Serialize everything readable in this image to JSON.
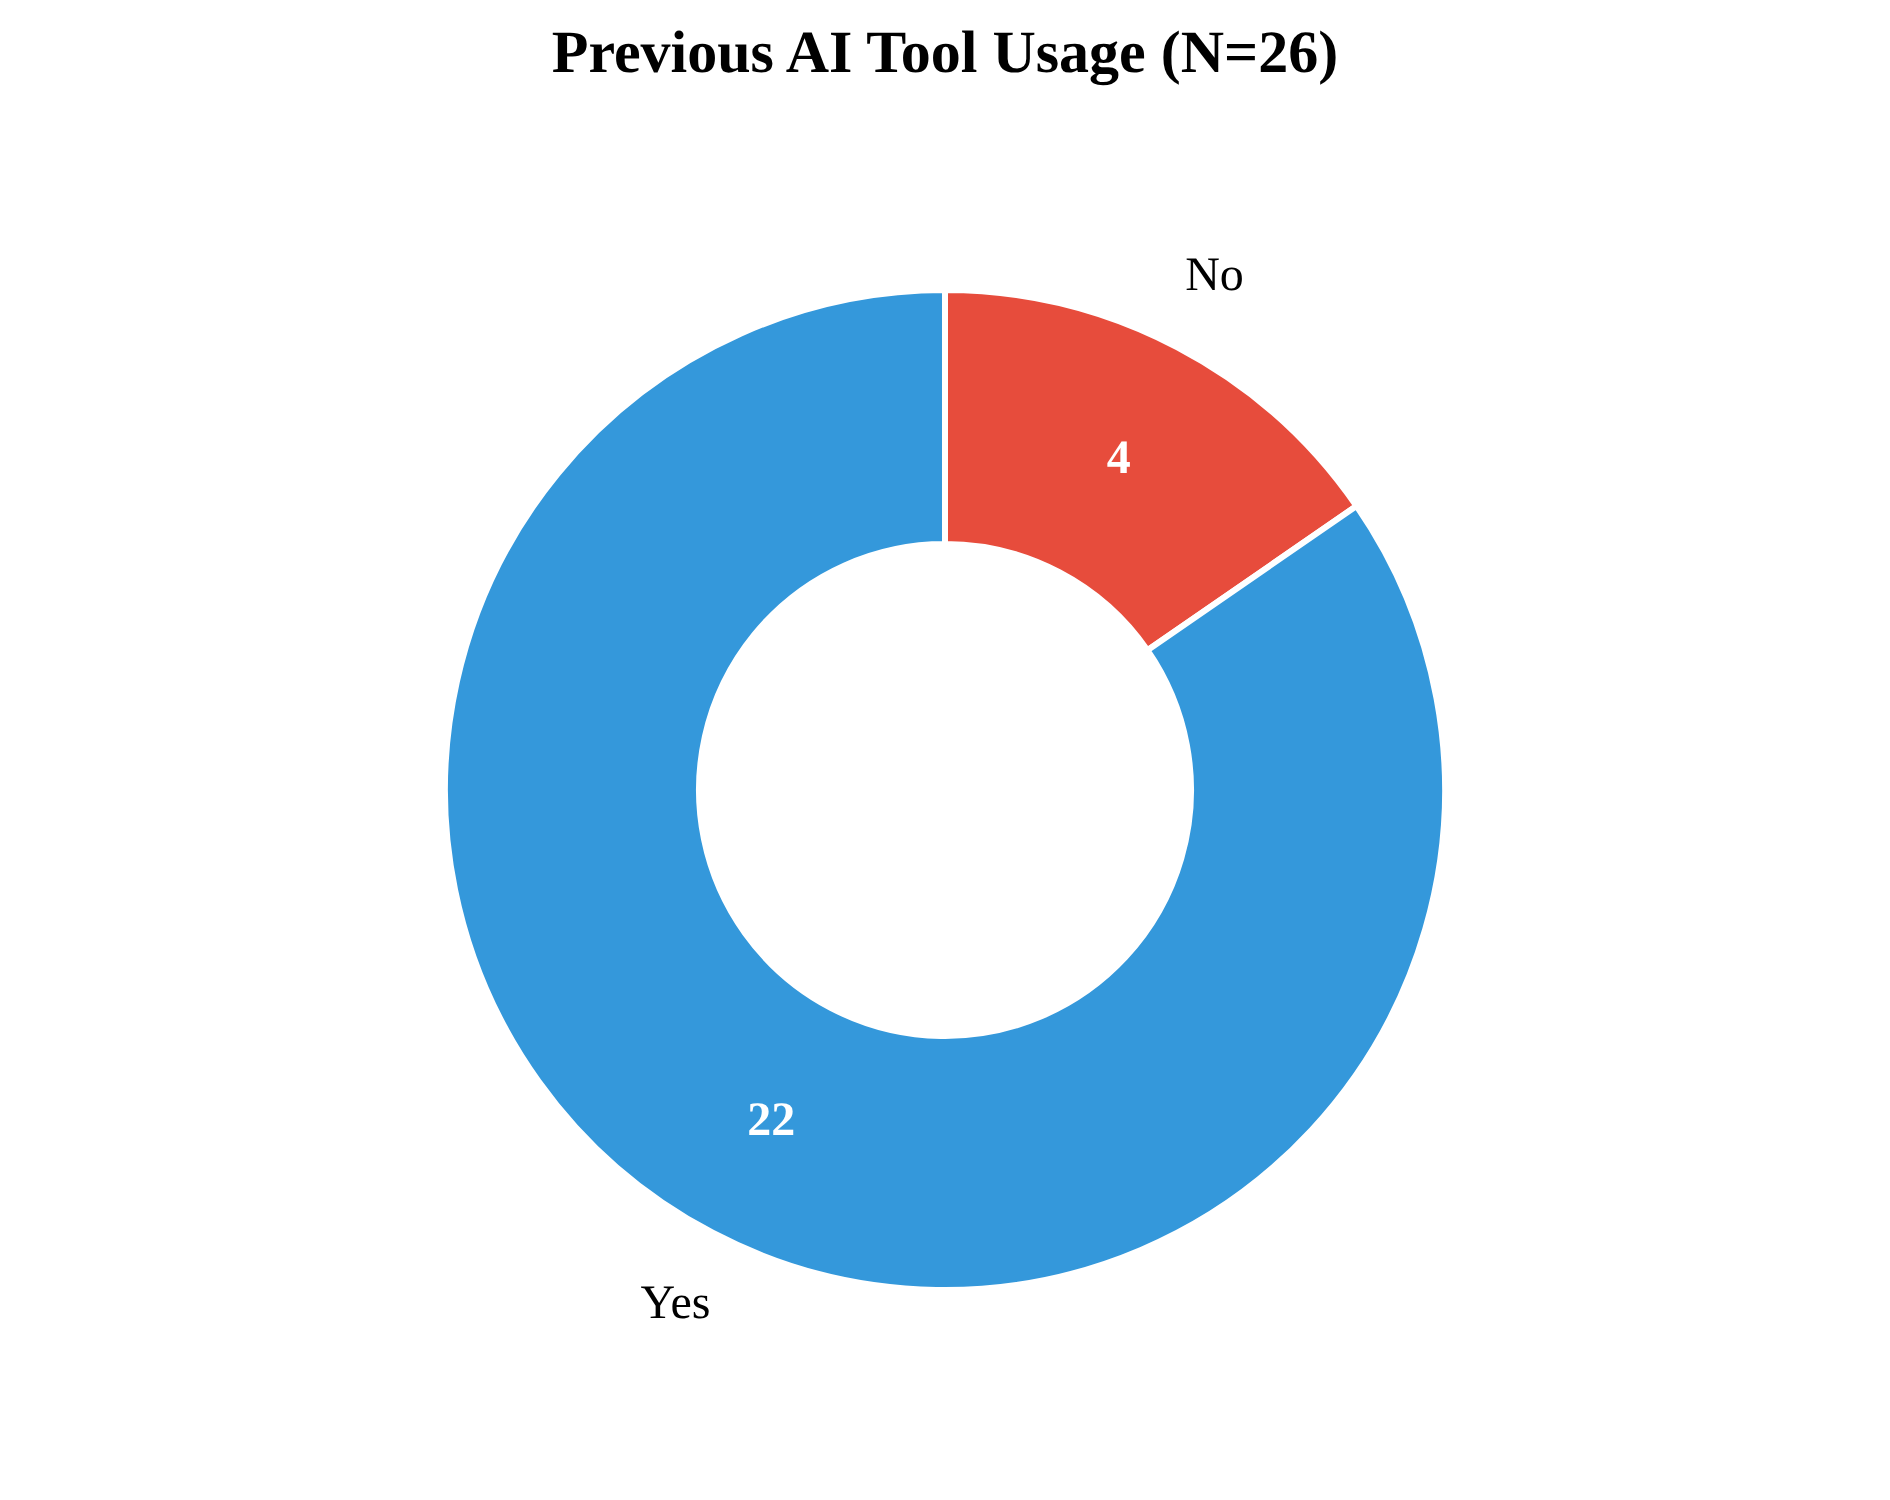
{
  "chart_data": {
    "type": "donut",
    "title": "Previous AI Tool Usage (N=26)",
    "categories": [
      "No",
      "Yes"
    ],
    "values": [
      4,
      22
    ],
    "colors": [
      "#e74c3c",
      "#3498db"
    ],
    "data_labels": true
  }
}
